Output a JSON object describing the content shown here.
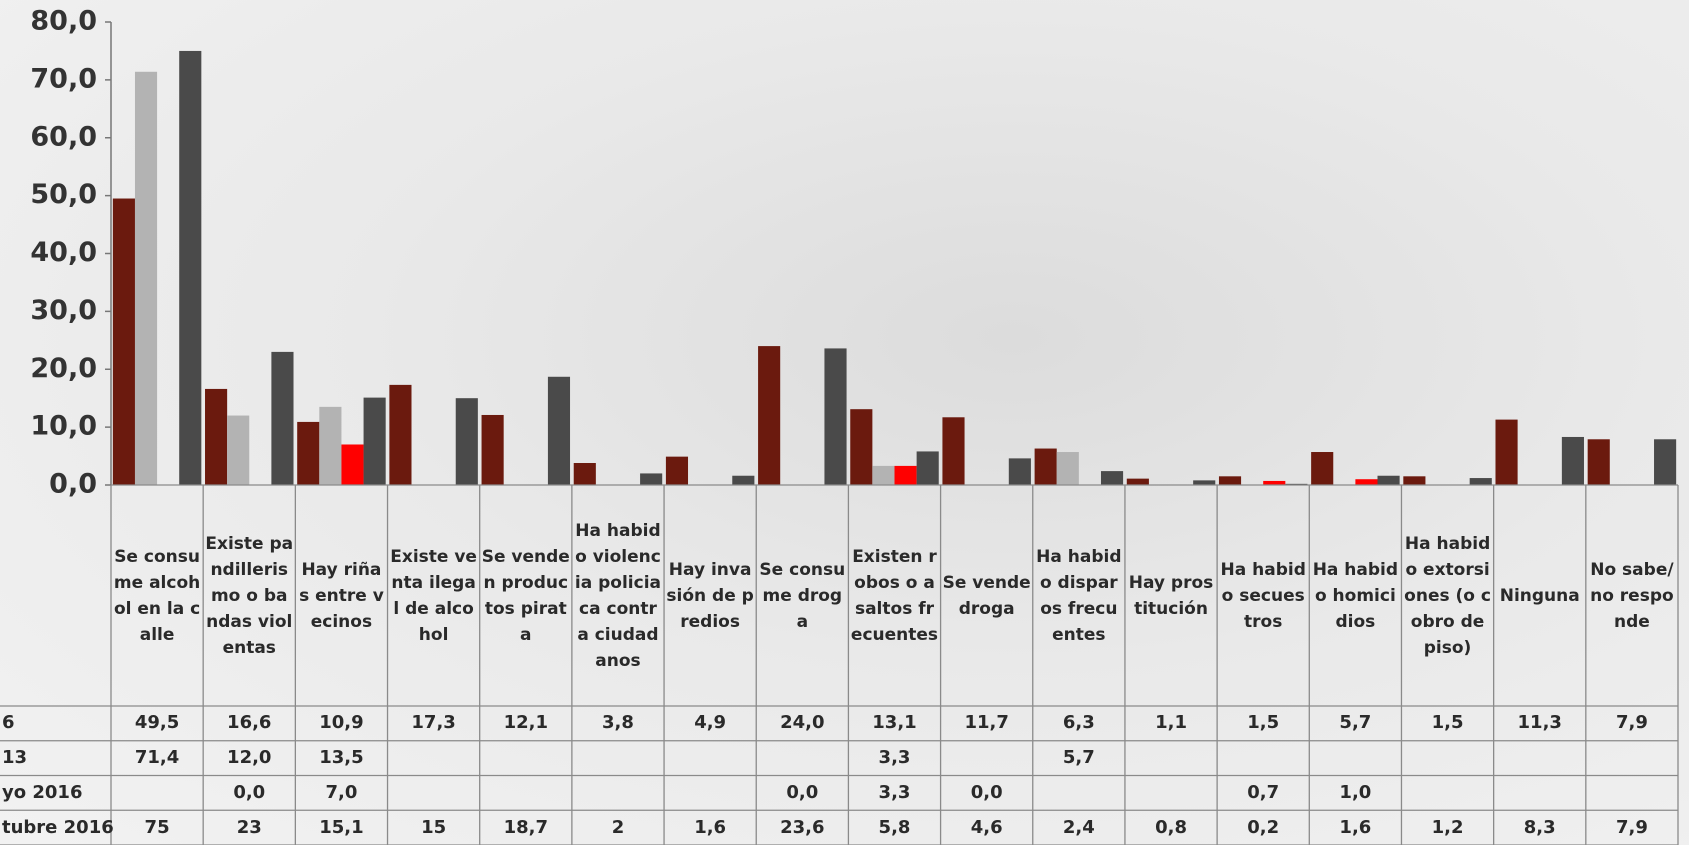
{
  "chart_data": {
    "type": "bar",
    "categories": [
      "Se consume alcohol en la calle",
      "Existe pandillerismo o bandas violentas",
      "Hay riñas entre vecinos",
      "Existe venta ilegal de alcohol",
      "Se venden productos pirata",
      "Ha habido violencia policiaca contra ciudadanos",
      "Hay invasión de predios",
      "Se consume droga",
      "Existen robos o asaltos frecuentes",
      "Se vende droga",
      "Ha habido disparos frecuentes",
      "Hay prostitución",
      "Ha habido secuestros",
      "Ha habido homicidios",
      "Ha habido extorsiones (o cobro de piso)",
      "Ninguna",
      "No sabe/no responde"
    ],
    "series": [
      {
        "name": "6",
        "color": "#6b1a0e",
        "values": [
          49.5,
          16.6,
          10.9,
          17.3,
          12.1,
          3.8,
          4.9,
          24.0,
          13.1,
          11.7,
          6.3,
          1.1,
          1.5,
          5.7,
          1.5,
          11.3,
          7.9
        ],
        "value_labels": [
          "49,5",
          "16,6",
          "10,9",
          "17,3",
          "12,1",
          "3,8",
          "4,9",
          "24,0",
          "13,1",
          "11,7",
          "6,3",
          "1,1",
          "1,5",
          "5,7",
          "1,5",
          "11,3",
          "7,9"
        ]
      },
      {
        "name": "13",
        "color": "#b3b3b3",
        "values": [
          71.4,
          12.0,
          13.5,
          null,
          null,
          null,
          null,
          null,
          3.3,
          null,
          5.7,
          null,
          null,
          null,
          null,
          null,
          null
        ],
        "value_labels": [
          "71,4",
          "12,0",
          "13,5",
          null,
          null,
          null,
          null,
          null,
          "3,3",
          null,
          "5,7",
          null,
          null,
          null,
          null,
          null,
          null
        ]
      },
      {
        "name": "yo 2016",
        "color": "#ff0000",
        "values": [
          null,
          0.0,
          7.0,
          null,
          null,
          null,
          null,
          0.0,
          3.3,
          0.0,
          null,
          null,
          0.7,
          1.0,
          null,
          null,
          null
        ],
        "value_labels": [
          null,
          "0,0",
          "7,0",
          null,
          null,
          null,
          null,
          "0,0",
          "3,3",
          "0,0",
          null,
          null,
          "0,7",
          "1,0",
          null,
          null,
          null
        ]
      },
      {
        "name": "tubre 2016",
        "color": "#4a4a4a",
        "values": [
          75,
          23,
          15.1,
          15,
          18.7,
          2,
          1.6,
          23.6,
          5.8,
          4.6,
          2.4,
          0.8,
          0.2,
          1.6,
          1.2,
          8.3,
          7.9
        ],
        "value_labels": [
          "75",
          "23",
          "15,1",
          "15",
          "18,7",
          "2",
          "1,6",
          "23,6",
          "5,8",
          "4,6",
          "2,4",
          "0,8",
          "0,2",
          "1,6",
          "1,2",
          "8,3",
          "7,9"
        ]
      }
    ],
    "ylim": [
      0,
      80
    ],
    "yticks": [
      {
        "value": 0,
        "label": "0,0"
      },
      {
        "value": 10,
        "label": "10,0"
      },
      {
        "value": 20,
        "label": "20,0"
      },
      {
        "value": 30,
        "label": "30,0"
      },
      {
        "value": 40,
        "label": "40,0"
      },
      {
        "value": 50,
        "label": "50,0"
      },
      {
        "value": 60,
        "label": "60,0"
      },
      {
        "value": 70,
        "label": "70,0"
      },
      {
        "value": 80,
        "label": "80,0"
      }
    ]
  }
}
